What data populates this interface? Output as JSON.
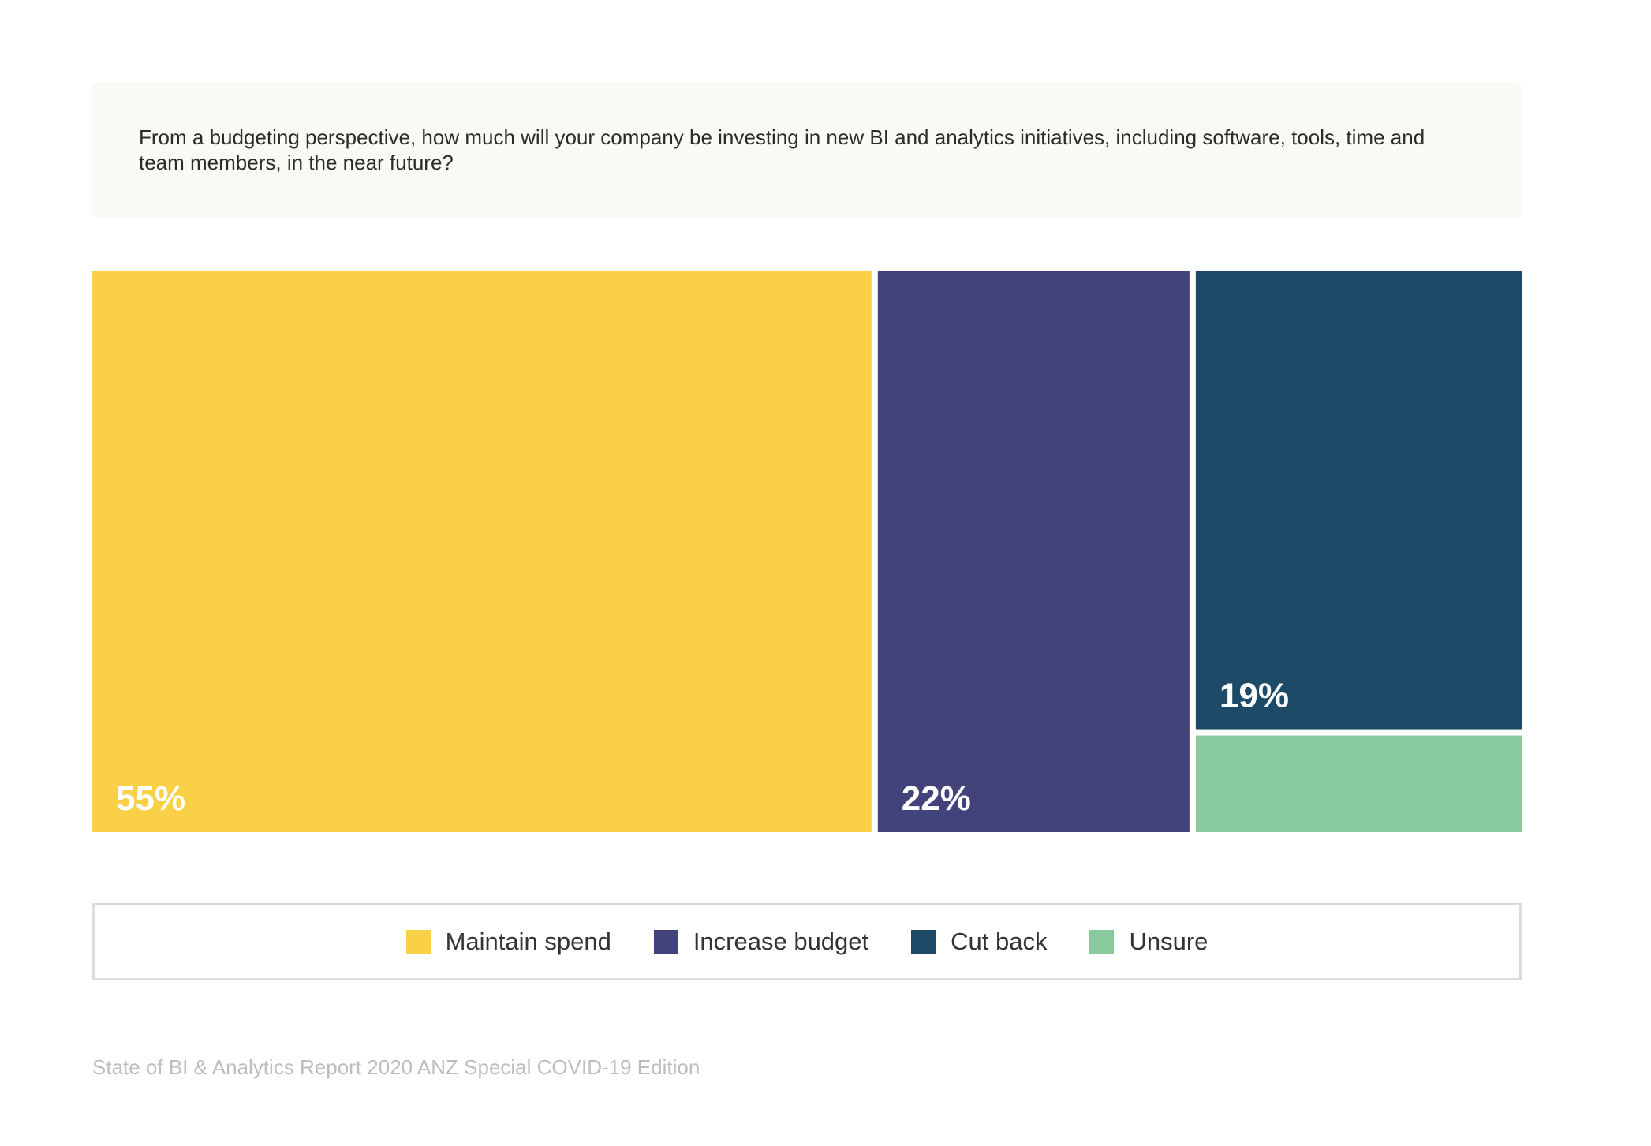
{
  "question": "From a budgeting perspective, how much will your company be investing in new BI and analytics initiatives, including software, tools, time and team members, in the near future?",
  "footer": "State of BI & Analytics Report 2020 ANZ Special COVID-19 Edition",
  "chart_data": {
    "type": "treemap",
    "title": "",
    "legend_position": "bottom",
    "categories": [
      "Maintain spend",
      "Increase budget",
      "Cut back",
      "Unsure"
    ],
    "values": [
      55,
      22,
      19,
      4
    ],
    "data_labels": [
      "55%",
      "22%",
      "19%",
      ""
    ],
    "colors": [
      "#f9d046",
      "#43437b",
      "#1d4a66",
      "#88c99d"
    ]
  },
  "legend": [
    {
      "label": "Maintain spend",
      "color": "#f9d046"
    },
    {
      "label": "Increase budget",
      "color": "#43437b"
    },
    {
      "label": "Cut back",
      "color": "#1d4a66"
    },
    {
      "label": "Unsure",
      "color": "#88c99d"
    }
  ]
}
